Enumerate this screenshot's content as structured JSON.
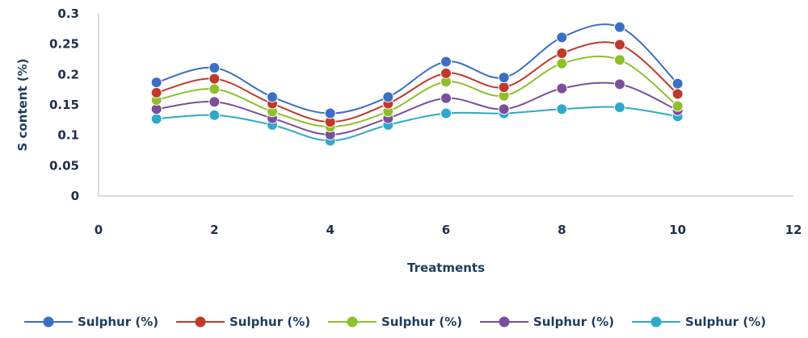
{
  "chart_data": {
    "type": "line",
    "title": "",
    "xlabel": "Treatments",
    "ylabel": "S content (%)",
    "xlim": [
      0,
      12
    ],
    "ylim": [
      0,
      0.3
    ],
    "x_ticks": [
      "0",
      "2",
      "4",
      "6",
      "8",
      "10",
      "12"
    ],
    "y_ticks": [
      "0",
      "0.05",
      "0.1",
      "0.15",
      "0.2",
      "0.25",
      "0.3"
    ],
    "grid": false,
    "smooth": true,
    "legend_position": "bottom",
    "x": [
      1,
      2,
      3,
      4,
      5,
      6,
      7,
      8,
      9,
      10
    ],
    "series": [
      {
        "name": "Sulphur (%)",
        "color": "#3a6fc4",
        "values": [
          0.187,
          0.211,
          0.163,
          0.136,
          0.163,
          0.221,
          0.195,
          0.261,
          0.278,
          0.185
        ]
      },
      {
        "name": "Sulphur (%)",
        "color": "#c0392b",
        "values": [
          0.17,
          0.193,
          0.152,
          0.122,
          0.152,
          0.202,
          0.179,
          0.235,
          0.249,
          0.168
        ]
      },
      {
        "name": "Sulphur (%)",
        "color": "#8fbf2a",
        "values": [
          0.158,
          0.176,
          0.139,
          0.114,
          0.139,
          0.188,
          0.165,
          0.218,
          0.224,
          0.148
        ]
      },
      {
        "name": "Sulphur (%)",
        "color": "#7a4f9c",
        "values": [
          0.143,
          0.155,
          0.128,
          0.101,
          0.128,
          0.161,
          0.143,
          0.177,
          0.184,
          0.141
        ]
      },
      {
        "name": "Sulphur (%)",
        "color": "#2ea9c9",
        "values": [
          0.127,
          0.133,
          0.117,
          0.091,
          0.117,
          0.136,
          0.136,
          0.143,
          0.146,
          0.131
        ]
      }
    ]
  }
}
